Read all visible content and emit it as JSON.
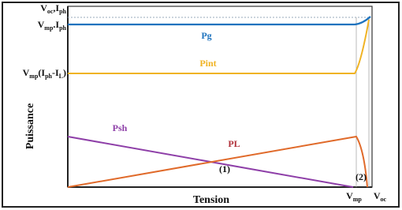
{
  "labels": {
    "voc_iph": [
      [
        "V",
        "oc"
      ],
      [
        ",I",
        "ph"
      ]
    ],
    "vmp_iph": [
      [
        "V",
        "mp"
      ],
      [
        ".I",
        "ph"
      ]
    ],
    "vmp_iph_il": [
      [
        "V",
        "mp"
      ],
      [
        "(I",
        "ph"
      ],
      [
        "-I",
        "L"
      ],
      [
        ")",
        ""
      ]
    ],
    "y_axis": "Puissance",
    "x_axis": "Tension",
    "vmp": [
      [
        "V",
        "mp"
      ]
    ],
    "voc": [
      [
        "V",
        "oc"
      ]
    ]
  },
  "curves": {
    "pg": "Pg",
    "pint": "Pint",
    "psh": "Psh",
    "pl": "PL"
  },
  "points": {
    "one": "(1)",
    "two": "(2)"
  }
}
